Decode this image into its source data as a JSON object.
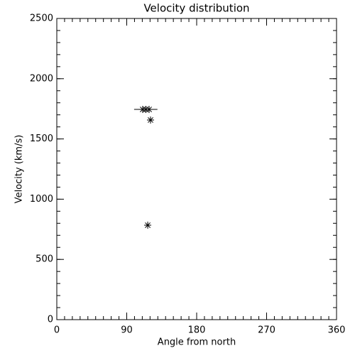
{
  "chart_data": {
    "type": "scatter",
    "title": "Velocity distribution",
    "x_label": "Angle from north",
    "y_label": "Velocity (km/s)",
    "x": [
      110.5,
      114.5,
      118.8,
      120.6,
      117
    ],
    "values": [
      1745,
      1745,
      1745,
      1657,
      784
    ],
    "xerr": [
      null,
      15,
      null,
      null,
      null
    ],
    "color": "#000000",
    "xlim": [
      0,
      360
    ],
    "xticks": [
      0,
      90,
      180,
      270,
      360
    ],
    "ylim": [
      0,
      2500
    ],
    "yticks": [
      0,
      500,
      1000,
      1500,
      2000,
      2500
    ],
    "xminorticks": [
      0,
      10,
      20,
      30,
      40,
      50,
      60,
      70,
      80,
      90,
      100,
      110,
      120,
      130,
      140,
      150,
      160,
      170,
      180,
      190,
      200,
      210,
      220,
      230,
      240,
      250,
      260,
      270,
      280,
      290,
      300,
      310,
      320,
      330,
      340,
      350,
      360
    ],
    "yminorticks": [
      0,
      100,
      200,
      300,
      400,
      500,
      600,
      700,
      800,
      900,
      1000,
      1100,
      1200,
      1300,
      1400,
      1500,
      1600,
      1700,
      1800,
      1900,
      2000,
      2100,
      2200,
      2300,
      2400,
      2500
    ],
    "grid": false
  }
}
